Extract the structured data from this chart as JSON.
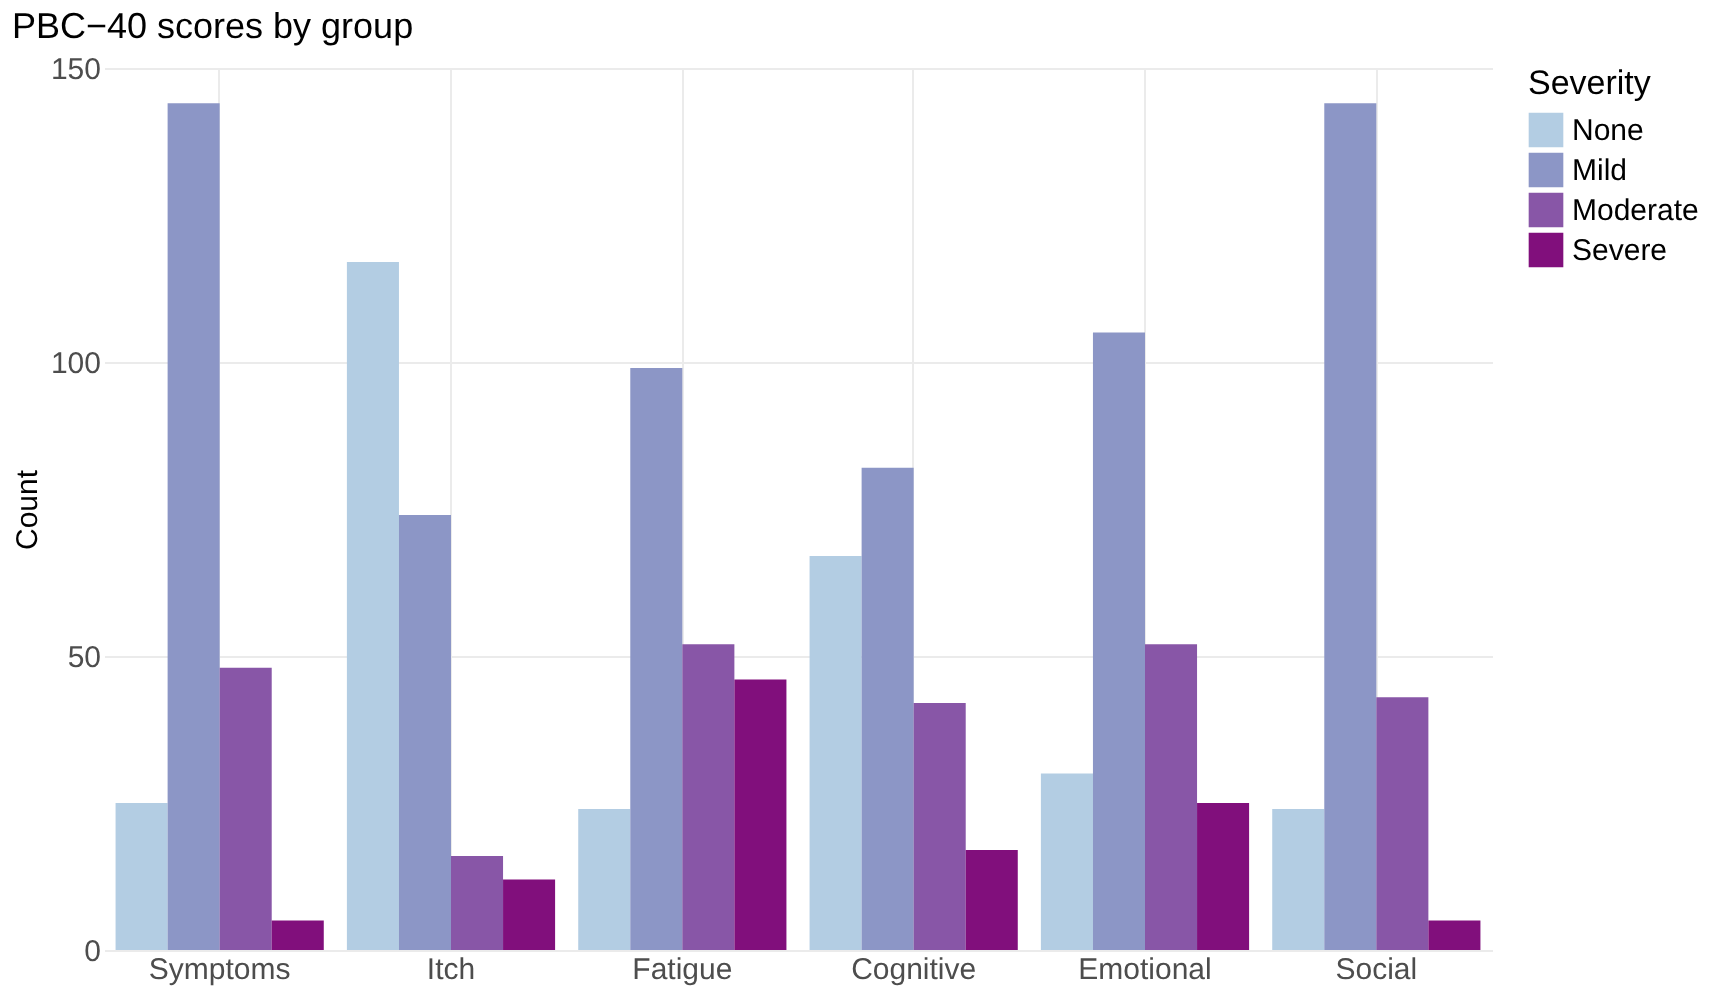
{
  "chart_data": {
    "type": "bar",
    "title": "PBC−40 scores by group",
    "ylabel": "Count",
    "legend_title": "Severity",
    "legend": "right",
    "grid": true,
    "categories": [
      "Symptoms",
      "Itch",
      "Fatigue",
      "Cognitive",
      "Emotional",
      "Social"
    ],
    "ylim": [
      0,
      150
    ],
    "yticks": [
      0,
      50,
      100,
      150
    ],
    "series": [
      {
        "name": "None",
        "color": "#b3cde3",
        "values": [
          25,
          117,
          24,
          67,
          30,
          24
        ]
      },
      {
        "name": "Mild",
        "color": "#8c96c6",
        "values": [
          144,
          74,
          99,
          82,
          105,
          144
        ]
      },
      {
        "name": "Moderate",
        "color": "#8856a7",
        "values": [
          48,
          16,
          52,
          42,
          52,
          43
        ]
      },
      {
        "name": "Severe",
        "color": "#810f7c",
        "values": [
          5,
          12,
          46,
          17,
          25,
          5
        ]
      }
    ]
  }
}
